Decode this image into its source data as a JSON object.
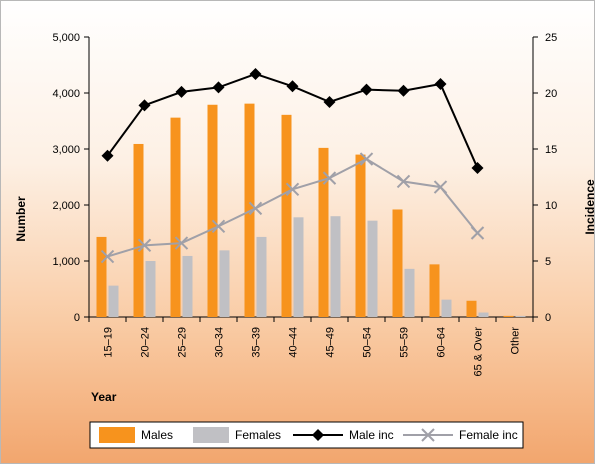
{
  "chart_data": {
    "type": "bar",
    "categories": [
      "15–19",
      "20–24",
      "25–29",
      "30–34",
      "35–39",
      "40–44",
      "45–49",
      "50–54",
      "55–59",
      "60–64",
      "65 & Over",
      "Other"
    ],
    "series": [
      {
        "name": "Males",
        "type": "bar",
        "axis": "left",
        "color": "#f7931d",
        "values": [
          1430,
          3090,
          3560,
          3790,
          3810,
          3610,
          3020,
          2900,
          1920,
          940,
          290,
          20
        ]
      },
      {
        "name": "Females",
        "type": "bar",
        "axis": "left",
        "color": "#c0c0c4",
        "values": [
          560,
          1000,
          1090,
          1190,
          1430,
          1780,
          1800,
          1720,
          860,
          310,
          80,
          20
        ]
      },
      {
        "name": "Male inc",
        "type": "line",
        "axis": "right",
        "color": "#000000",
        "marker": "diamond",
        "values": [
          14.4,
          18.9,
          20.1,
          20.5,
          21.7,
          20.6,
          19.2,
          20.3,
          20.2,
          20.8,
          13.3,
          null
        ]
      },
      {
        "name": "Female inc",
        "type": "line",
        "axis": "right",
        "color": "#a0a0a8",
        "marker": "x",
        "values": [
          5.4,
          6.4,
          6.6,
          8.1,
          9.7,
          11.4,
          12.4,
          14.1,
          12.1,
          11.6,
          7.5,
          null
        ]
      }
    ],
    "xlabel": "Year",
    "ylabel": "Number",
    "y2label": "Incidence",
    "ylim": [
      0,
      5000
    ],
    "y2lim": [
      0,
      25
    ],
    "yticks": [
      "0",
      "1,000",
      "2,000",
      "3,000",
      "4,000",
      "5,000"
    ],
    "y2ticks": [
      "0",
      "5",
      "10",
      "15",
      "20",
      "25"
    ],
    "grid": false,
    "legend": "bottom"
  }
}
